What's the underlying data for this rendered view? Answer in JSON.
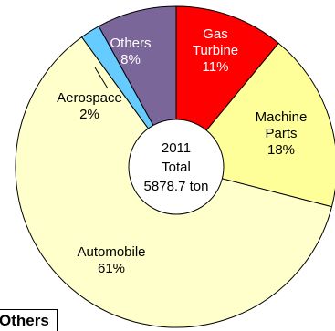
{
  "chart_data": {
    "type": "pie",
    "variant": "donut",
    "center_label": [
      "2011",
      "Total",
      "5878.7 ton"
    ],
    "slices": [
      {
        "name": "Gas Turbine",
        "label_lines": [
          "Gas",
          "Turbine"
        ],
        "value_label": "11%",
        "percent": 11,
        "color": "#ff0000",
        "text_color": "#ffffff"
      },
      {
        "name": "Machine Parts",
        "label_lines": [
          "Machine",
          "Parts"
        ],
        "value_label": "18%",
        "percent": 18,
        "color": "#ffff99",
        "text_color": "#000000"
      },
      {
        "name": "Automobile",
        "label_lines": [
          "Automobile"
        ],
        "value_label": "61%",
        "percent": 61,
        "color": "#ffffcc",
        "text_color": "#000000"
      },
      {
        "name": "Aerospace",
        "label_lines": [
          "Aerospace"
        ],
        "value_label": "2%",
        "percent": 2,
        "color": "#66ccff",
        "text_color": "#000000"
      },
      {
        "name": "Others",
        "label_lines": [
          "Others"
        ],
        "value_label": "8%",
        "percent": 8,
        "color": "#7a6699",
        "text_color": "#ffffff"
      }
    ]
  },
  "legend": {
    "label": "Others"
  }
}
